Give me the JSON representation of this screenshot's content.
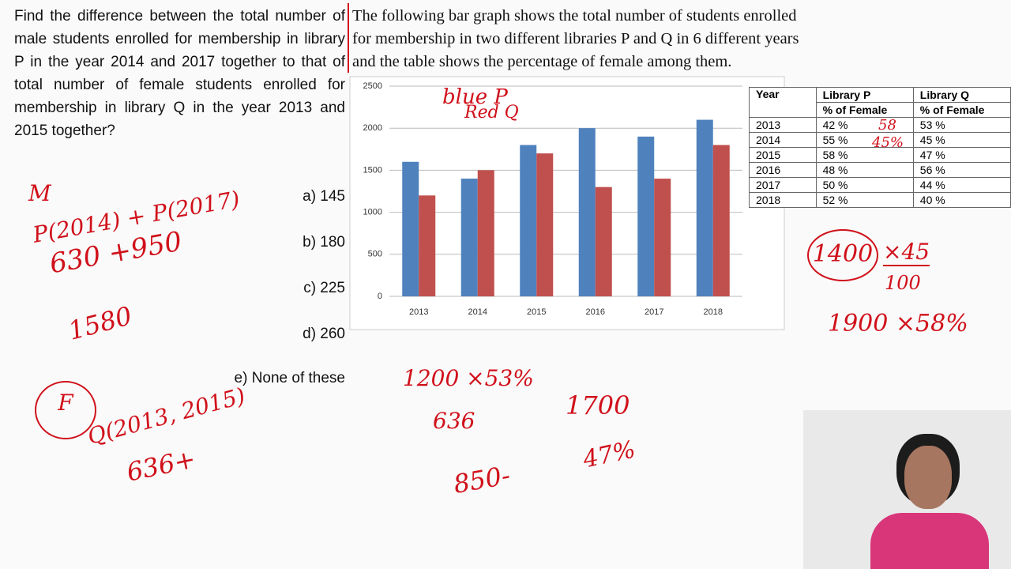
{
  "question": "Find the difference between the total number of male students enrolled for membership in library P in the year 2014 and 2017 together to that of total number of female students enrolled for membership in library Q in the year 2013 and 2015 together?",
  "options": [
    "a) 145",
    "b) 180",
    "c) 225",
    "d) 260",
    "e) None of these"
  ],
  "passage": [
    "The following bar graph shows the total number of students enrolled",
    "for membership in two different libraries P and Q in 6 different years",
    "and the table shows the percentage of female among them."
  ],
  "chart_data": {
    "type": "bar",
    "categories": [
      "2013",
      "2014",
      "2015",
      "2016",
      "2017",
      "2018"
    ],
    "series": [
      {
        "color": "#4f81bd",
        "values": [
          1600,
          1400,
          1800,
          2000,
          1900,
          2100
        ]
      },
      {
        "color": "#c0504d",
        "values": [
          1200,
          1500,
          1700,
          1300,
          1400,
          1800
        ]
      }
    ],
    "ylim": [
      0,
      2500
    ],
    "yticks": [
      0,
      500,
      1000,
      1500,
      2000,
      2500
    ],
    "grid": true
  },
  "table": {
    "header": [
      "Year",
      "Library P",
      "Library Q"
    ],
    "subheader": [
      "% of Female",
      "% of Female"
    ],
    "rows": [
      [
        "2013",
        "42 %",
        "53 %"
      ],
      [
        "2014",
        "55 %",
        "45 %"
      ],
      [
        "2015",
        "58 %",
        "47 %"
      ],
      [
        "2016",
        "48 %",
        "56 %"
      ],
      [
        "2017",
        "50 %",
        "44 %"
      ],
      [
        "2018",
        "52 %",
        "40 %"
      ]
    ]
  },
  "notes": [
    "blue P",
    "Red Q",
    "M",
    "P(2014) + P(2017)",
    "630 +950",
    "1580",
    "F",
    "Q(2013, 2015)",
    "636+",
    "1200 ×53%",
    "636",
    "850-",
    "1700",
    "47%",
    "1400",
    "×45",
    "100",
    "1900 ×58%",
    "58",
    "45%"
  ]
}
